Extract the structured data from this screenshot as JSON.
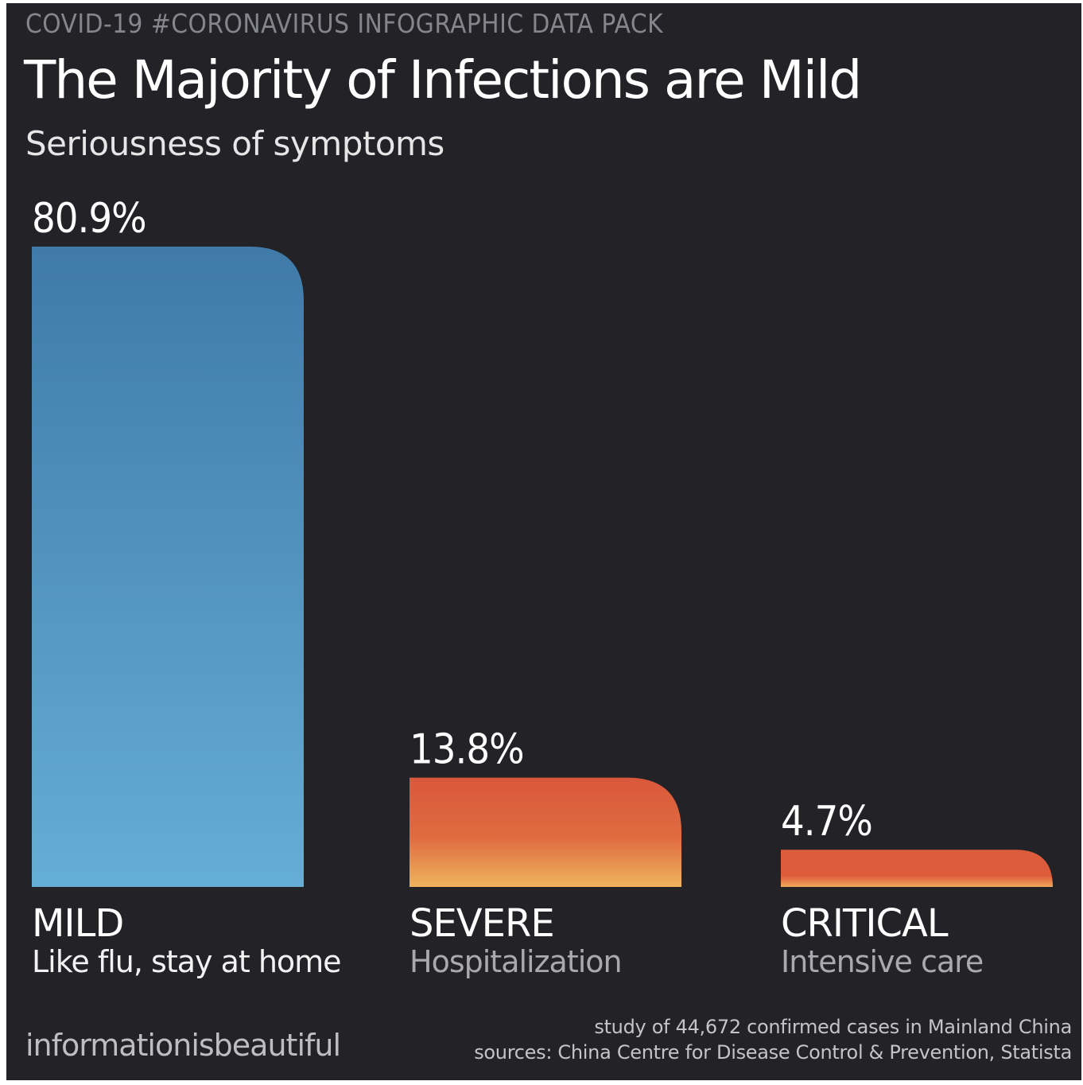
{
  "header": {
    "pack_label": "COVID-19 #CORONAVIRUS INFOGRAPHIC DATA PACK",
    "title": "The Majority of Infections are Mild",
    "subtitle": "Seriousness of symptoms"
  },
  "chart_data": {
    "type": "bar",
    "title": "The Majority of Infections are Mild",
    "subtitle": "Seriousness of symptoms",
    "unit": "%",
    "categories": [
      "MILD",
      "SEVERE",
      "CRITICAL"
    ],
    "values": [
      80.9,
      13.8,
      4.7
    ],
    "value_labels": [
      "80.9%",
      "13.8%",
      "4.7%"
    ],
    "descriptions": [
      "Like flu, stay at home",
      "Hospitalization",
      "Intensive care"
    ],
    "colors": {
      "mild_top": "#3f7aa8",
      "mild_bottom": "#65aed5",
      "severe_top": "#d9583c",
      "severe_mid": "#e06b40",
      "severe_bottom": "#efb45c",
      "critical_top": "#dd5c3c",
      "critical_bottom": "#f0a85a",
      "desc_mild": "#f2f2f2",
      "desc_other": "#a9a9ae"
    },
    "ylim": [
      0,
      80.9
    ],
    "grid": false,
    "legend": "none"
  },
  "footer": {
    "brand": "informationisbeautiful",
    "study_note": "study of 44,672 confirmed cases in Mainland China",
    "sources": "sources: China Centre for Disease Control & Prevention, Statista"
  }
}
